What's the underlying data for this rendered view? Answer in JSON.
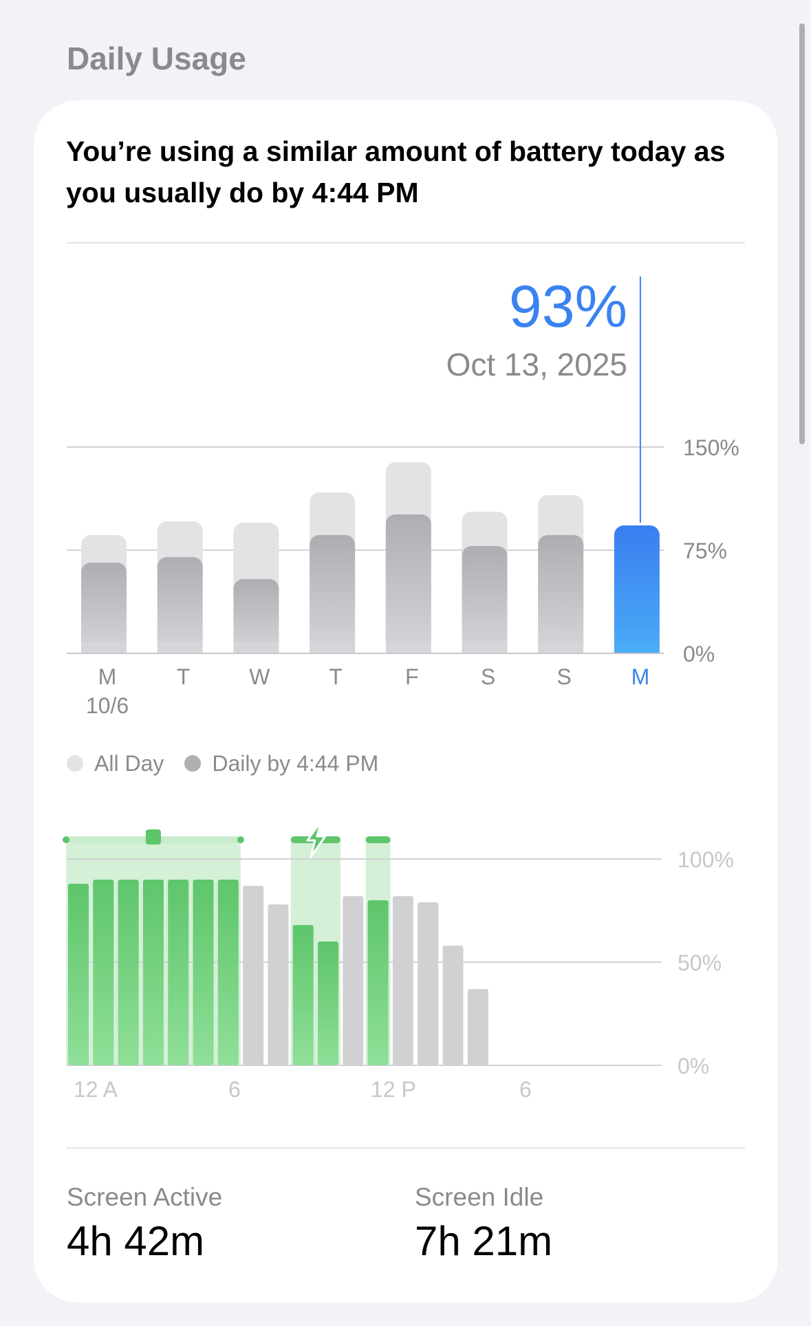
{
  "section_title": "Daily Usage",
  "headline": "You’re using a similar amount of battery today as you usually do by 4:44 PM",
  "selection": {
    "percent": "93%",
    "date": "Oct 13, 2025"
  },
  "colors": {
    "all_day": "#e3e3e5",
    "daily_by": "#b0b0b4",
    "selected": "#3a82f0",
    "charging_green": "#5ec56b",
    "charging_band": "#d4f0d7",
    "usage_gray": "#d1d1d4"
  },
  "legend": [
    {
      "label": "All Day",
      "color": "#e3e3e5"
    },
    {
      "label": "Daily by 4:44 PM",
      "color": "#b0b0b4"
    }
  ],
  "chart_data": [
    {
      "type": "bar",
      "categories": [
        "M",
        "T",
        "W",
        "T",
        "F",
        "S",
        "S",
        "M"
      ],
      "category_sublabels": [
        "10/6",
        "",
        "",
        "",
        "",
        "",
        "",
        ""
      ],
      "series": [
        {
          "name": "All Day",
          "values": [
            86,
            96,
            95,
            117,
            139,
            103,
            115,
            93
          ]
        },
        {
          "name": "Daily by 4:44 PM",
          "values": [
            66,
            70,
            54,
            86,
            101,
            78,
            86,
            93
          ]
        }
      ],
      "selected_index": 7,
      "y_ticks": [
        "150%",
        "75%",
        "0%"
      ],
      "ylim": [
        0,
        150
      ],
      "grid": true
    },
    {
      "type": "bar",
      "x_ticks": [
        "12 A",
        "6",
        "12 P",
        "6"
      ],
      "y_ticks": [
        "100%",
        "50%",
        "0%"
      ],
      "ylim": [
        0,
        100
      ],
      "hours": [
        0,
        1,
        2,
        3,
        4,
        5,
        6,
        7,
        8,
        9,
        10,
        11,
        12,
        13,
        14,
        15,
        16
      ],
      "values": [
        88,
        90,
        90,
        90,
        90,
        90,
        90,
        87,
        78,
        68,
        60,
        82,
        80,
        82,
        79,
        58,
        37
      ],
      "charging": [
        true,
        true,
        true,
        true,
        true,
        true,
        true,
        false,
        false,
        true,
        true,
        false,
        true,
        false,
        false,
        false,
        false
      ],
      "grid": true
    }
  ],
  "stats": [
    {
      "label": "Screen Active",
      "value": "4h 42m"
    },
    {
      "label": "Screen Idle",
      "value": "7h 21m"
    }
  ]
}
